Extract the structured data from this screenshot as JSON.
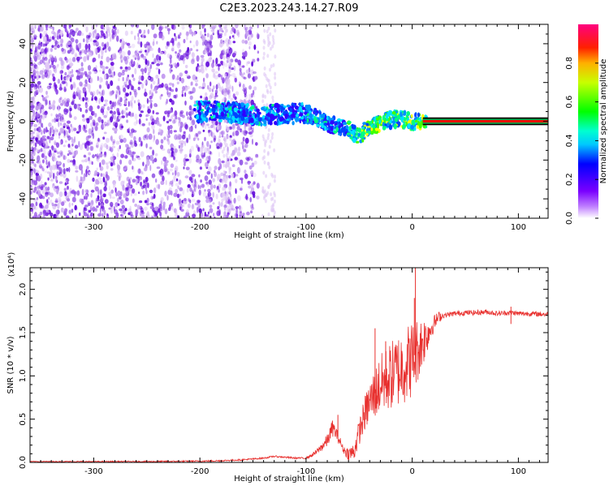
{
  "title": "C2E3.2023.243.14.27.R09",
  "colors": {
    "signal_line": "#e8302e",
    "carrier_band": "#ff0000",
    "scatter_palette": [
      "#e0c8f5",
      "#c7a2f0",
      "#a870ea",
      "#8a3fe6",
      "#6f14e0",
      "#5a00d8"
    ],
    "axis": "#000000",
    "background": "#ffffff"
  },
  "chart_data": [
    {
      "type": "heatmap",
      "title": "C2E3.2023.243.14.27.R09",
      "xlabel": "Height of straight line (km)",
      "ylabel": "Frequency (Hz)",
      "xlim": [
        -360,
        128
      ],
      "ylim": [
        -50,
        50
      ],
      "x_ticks": [
        -300,
        -200,
        -100,
        0,
        100
      ],
      "x_tick_labels": [
        "-300",
        "-200",
        "-100",
        "0",
        "100"
      ],
      "y_ticks": [
        -40,
        -20,
        0,
        20,
        40
      ],
      "y_tick_labels": [
        "-40",
        "-20",
        "0",
        "20",
        "40"
      ],
      "colorbar": {
        "label": "Normalized spectral amplitude",
        "range": [
          0,
          1
        ],
        "ticks": [
          0.0,
          0.2,
          0.4,
          0.6,
          0.8
        ],
        "tick_labels": [
          "0.0",
          "0.2",
          "0.4",
          "0.6",
          "0.8"
        ],
        "colormap": [
          "#ffffff",
          "#9933ff",
          "#0000ff",
          "#00ffff",
          "#00ff00",
          "#ffff00",
          "#ff0000",
          "#ff0080"
        ]
      },
      "ridge": {
        "description_free": true,
        "x": [
          -205,
          -180,
          -160,
          -140,
          -120,
          -100,
          -90,
          -80,
          -70,
          -60,
          -55,
          -50,
          -45,
          -40,
          -35,
          -30,
          -20,
          -10,
          0,
          10,
          128
        ],
        "y": [
          5,
          5,
          4,
          3,
          4,
          4,
          2,
          -1,
          -3,
          -4,
          -6,
          -8,
          -5,
          -3,
          -2,
          -1,
          1,
          1,
          0,
          0,
          0
        ]
      },
      "carrier": {
        "x_start": 10,
        "x_end": 128,
        "y": 0
      },
      "grid": false
    },
    {
      "type": "line",
      "xlabel": "Height of straight line (km)",
      "ylabel": "SNR (10 * v/v)",
      "y_multiplier_label": "(x10⁴)",
      "xlim": [
        -360,
        128
      ],
      "ylim": [
        0,
        2.25
      ],
      "x_ticks": [
        -300,
        -200,
        -100,
        0,
        100
      ],
      "x_tick_labels": [
        "-300",
        "-200",
        "-100",
        "0",
        "100"
      ],
      "y_ticks": [
        0,
        0.5,
        1.0,
        1.5,
        2.0
      ],
      "y_tick_labels": [
        "0.0",
        "0.5",
        "1.0",
        "1.5",
        "2.0"
      ],
      "envelope": {
        "x": [
          -360,
          -300,
          -250,
          -200,
          -180,
          -160,
          -140,
          -130,
          -120,
          -110,
          -100,
          -95,
          -90,
          -80,
          -75,
          -70,
          -65,
          -60,
          -55,
          -50,
          -45,
          -40,
          -35,
          -30,
          -25,
          -20,
          -15,
          -10,
          -5,
          0,
          5,
          10,
          15,
          20,
          25,
          30,
          40,
          50,
          60,
          70,
          80,
          90,
          95,
          100,
          110,
          128
        ],
        "y": [
          0.01,
          0.01,
          0.01,
          0.015,
          0.02,
          0.03,
          0.05,
          0.07,
          0.06,
          0.05,
          0.05,
          0.08,
          0.12,
          0.25,
          0.4,
          0.3,
          0.15,
          0.1,
          0.12,
          0.35,
          0.55,
          0.7,
          0.8,
          0.9,
          0.95,
          1.0,
          1.05,
          1.1,
          1.15,
          1.2,
          1.3,
          1.4,
          1.5,
          1.6,
          1.68,
          1.7,
          1.72,
          1.73,
          1.73,
          1.74,
          1.72,
          1.73,
          1.73,
          1.72,
          1.72,
          1.71
        ]
      },
      "noise": {
        "x": [
          -360,
          -100,
          -90,
          -75,
          -65,
          -50,
          -40,
          -30,
          -20,
          -10,
          0,
          10,
          20,
          30
        ],
        "amp": [
          0.005,
          0.01,
          0.03,
          0.1,
          0.04,
          0.15,
          0.25,
          0.35,
          0.4,
          0.45,
          0.45,
          0.3,
          0.1,
          0.03
        ]
      },
      "spikes": [
        {
          "x": 3,
          "y": 2.25
        },
        {
          "x": 2,
          "y": 1.9
        },
        {
          "x": -25,
          "y": 1.4
        },
        {
          "x": -35,
          "y": 1.55
        },
        {
          "x": -70,
          "y": 0.55
        },
        {
          "x": 93,
          "y": 1.8
        },
        {
          "x": 93,
          "y": 1.6
        }
      ],
      "grid": false
    }
  ]
}
